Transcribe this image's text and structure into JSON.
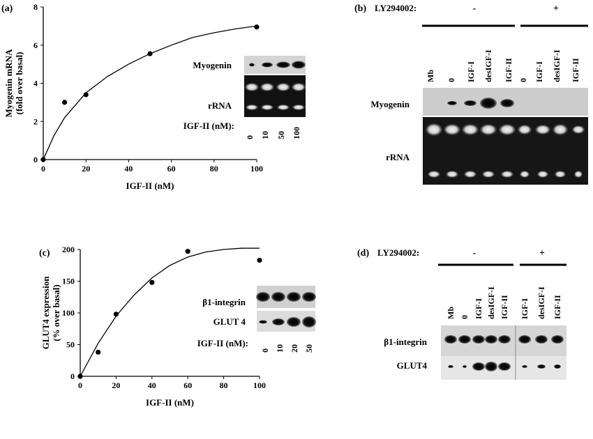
{
  "panels": {
    "a": {
      "letter": "(a)",
      "blot_labels": [
        "Myogenin",
        "rRNA",
        "IGF-II (nM):"
      ],
      "lane_labels": [
        "0",
        "10",
        "50",
        "100"
      ]
    },
    "b": {
      "letter": "(b)",
      "inhibitor_label": "LY294002:",
      "minus": "-",
      "plus": "+",
      "lane_labels": [
        "Mb",
        "0",
        "IGF-I",
        "desIGF-I",
        "IGF-II",
        "0",
        "IGF-I",
        "desIGF-I",
        "IGF-II"
      ],
      "row_labels": [
        "Myogenin",
        "rRNA"
      ]
    },
    "c": {
      "letter": "(c)",
      "blot_labels": [
        "β1-integrin",
        "GLUT 4",
        "IGF-II (nM):"
      ],
      "lane_labels": [
        "0",
        "10",
        "20",
        "50"
      ]
    },
    "d": {
      "letter": "(d)",
      "inhibitor_label": "LY294002:",
      "minus": "-",
      "plus": "+",
      "lane_labels": [
        "Mb",
        "0",
        "IGF-I",
        "desIGF-I",
        "IGF-II",
        "IGF-I",
        "desIGF-I",
        "IGF-II"
      ],
      "row_labels": [
        "β1-integrin",
        "GLUT4"
      ]
    }
  },
  "chart_data": [
    {
      "type": "scatter",
      "panel": "a",
      "xlabel": "IGF-II (nM)",
      "ylabel": "Myogenin mRNA (fold over basal)",
      "ylabel_lines": [
        "Myogenin mRNA",
        "(fold over basal)"
      ],
      "xlim": [
        0,
        100
      ],
      "ylim": [
        0,
        8
      ],
      "xticks": [
        0,
        20,
        40,
        60,
        80,
        100
      ],
      "yticks": [
        0,
        2,
        4,
        6,
        8
      ],
      "grid": false,
      "series": [
        {
          "x": [
            0,
            10,
            20,
            50,
            100
          ],
          "y": [
            0,
            3.0,
            3.4,
            5.55,
            6.95
          ]
        }
      ],
      "fit_curve": {
        "x": [
          0,
          5,
          10,
          20,
          30,
          40,
          50,
          60,
          70,
          80,
          90,
          100
        ],
        "y": [
          0,
          1.25,
          2.2,
          3.5,
          4.35,
          5.0,
          5.55,
          6.0,
          6.4,
          6.65,
          6.85,
          7.0
        ]
      }
    },
    {
      "type": "scatter",
      "panel": "c",
      "xlabel": "IGF-II (nM)",
      "ylabel": "GLUT4 expression (% over basal)",
      "ylabel_lines": [
        "GLUT4 expression",
        "(% over basal)"
      ],
      "xlim": [
        0,
        100
      ],
      "ylim": [
        0,
        200
      ],
      "xticks": [
        0,
        20,
        40,
        60,
        80,
        100
      ],
      "yticks": [
        0,
        50,
        100,
        150,
        200
      ],
      "grid": false,
      "series": [
        {
          "x": [
            0,
            10,
            20,
            40,
            60,
            100
          ],
          "y": [
            0,
            38,
            98,
            148,
            197,
            183
          ]
        }
      ],
      "fit_curve": {
        "x": [
          0,
          10,
          20,
          30,
          40,
          50,
          60,
          70,
          80,
          90,
          100
        ],
        "y": [
          0,
          52,
          95,
          128,
          155,
          175,
          188,
          196,
          200,
          202,
          202
        ]
      }
    }
  ]
}
